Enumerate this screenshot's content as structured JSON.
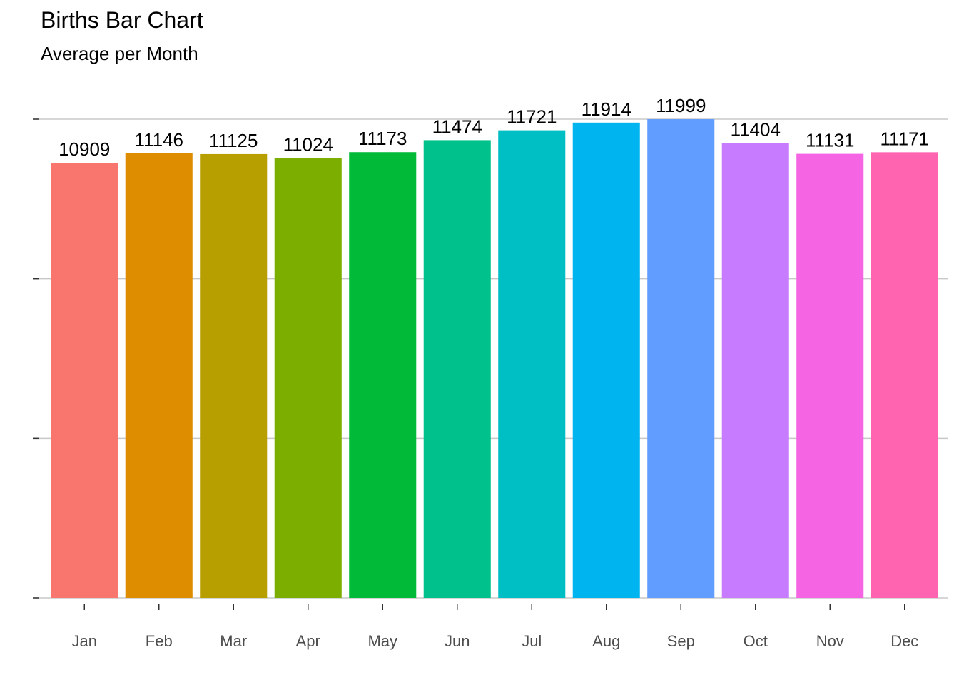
{
  "chart_data": {
    "type": "bar",
    "title": "Births Bar Chart",
    "subtitle": "Average per Month",
    "xlabel": "",
    "ylabel": "",
    "categories": [
      "Jan",
      "Feb",
      "Mar",
      "Apr",
      "May",
      "Jun",
      "Jul",
      "Aug",
      "Sep",
      "Oct",
      "Nov",
      "Dec"
    ],
    "values": [
      10909,
      11146,
      11125,
      11024,
      11173,
      11474,
      11721,
      11914,
      11999,
      11404,
      11131,
      11171
    ],
    "colors": [
      "#F8766D",
      "#DE8C00",
      "#B79F00",
      "#7CAE00",
      "#00BA38",
      "#00C08B",
      "#00BFC4",
      "#00B4F0",
      "#619CFF",
      "#C77CFF",
      "#F564E3",
      "#FF64B0"
    ],
    "ylim": [
      0,
      12000
    ],
    "yticks": [
      0,
      4000,
      8000,
      12000
    ],
    "grid": "horizontal",
    "legend": "none"
  }
}
